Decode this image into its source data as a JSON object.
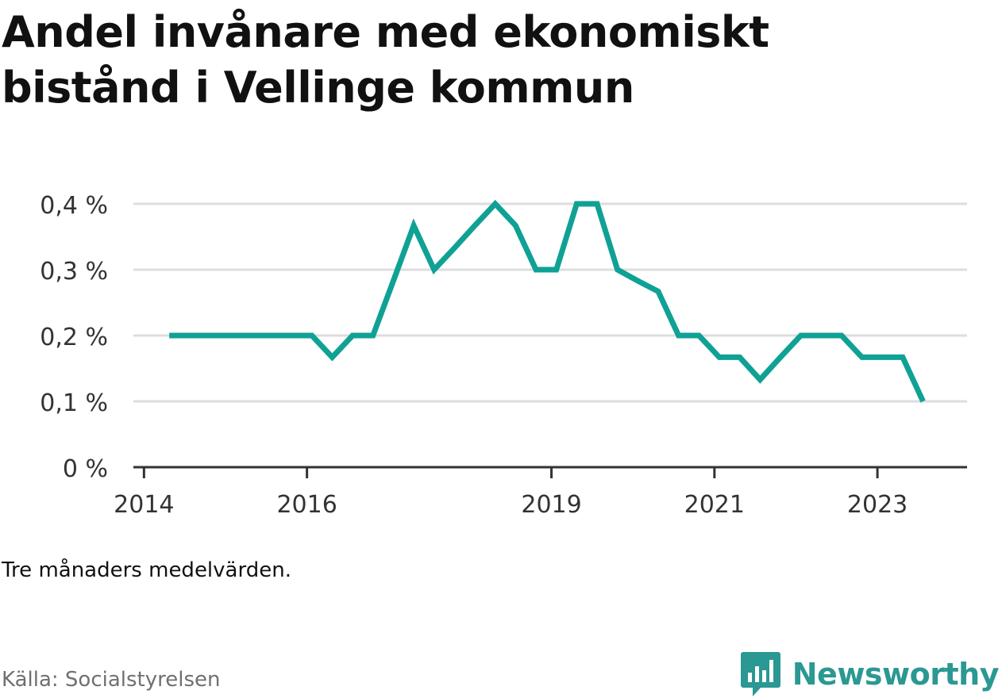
{
  "title": "Andel invånare med ekonomiskt bistånd i Vellinge kommun",
  "note": "Tre månaders medelvärden.",
  "source": "Källa: Socialstyrelsen",
  "brand": "Newsworthy",
  "colors": {
    "line": "#10a195",
    "grid": "#dddddd",
    "axis": "#333333",
    "brand": "#2b9893"
  },
  "chart_data": {
    "type": "line",
    "title": "Andel invånare med ekonomiskt bistånd i Vellinge kommun",
    "xlabel": "",
    "ylabel": "",
    "y_tick_labels": [
      "0 %",
      "0,1 %",
      "0,2 %",
      "0,3 %",
      "0,4 %"
    ],
    "y_ticks": [
      0,
      0.1,
      0.2,
      0.3,
      0.4
    ],
    "ylim": [
      0,
      0.4
    ],
    "x_tick_labels": [
      "2014",
      "2016",
      "2019",
      "2021",
      "2023"
    ],
    "x_ticks": [
      2014,
      2016,
      2019,
      2021,
      2023
    ],
    "xlim": [
      2013.87,
      2024.1
    ],
    "grid": true,
    "series": [
      {
        "x": [
          2014.31,
          2014.56,
          2014.81,
          2015.06,
          2015.31,
          2015.56,
          2015.81,
          2016.06,
          2016.31,
          2016.56,
          2016.81,
          2017.06,
          2017.31,
          2017.56,
          2017.81,
          2018.06,
          2018.31,
          2018.56,
          2018.81,
          2019.06,
          2019.31,
          2019.56,
          2019.81,
          2020.06,
          2020.31,
          2020.56,
          2020.81,
          2021.06,
          2021.31,
          2021.56,
          2021.81,
          2022.06,
          2022.31,
          2022.56,
          2022.81,
          2023.06,
          2023.31,
          2023.56
        ],
        "values": [
          0.2,
          0.2,
          0.2,
          0.2,
          0.2,
          0.2,
          0.2,
          0.2,
          0.167,
          0.2,
          0.2,
          0.283,
          0.367,
          0.3,
          0.333,
          0.367,
          0.4,
          0.367,
          0.3,
          0.3,
          0.4,
          0.4,
          0.3,
          0.283,
          0.267,
          0.2,
          0.2,
          0.167,
          0.167,
          0.133,
          0.167,
          0.2,
          0.2,
          0.2,
          0.167,
          0.167,
          0.167,
          0.1
        ]
      }
    ]
  }
}
